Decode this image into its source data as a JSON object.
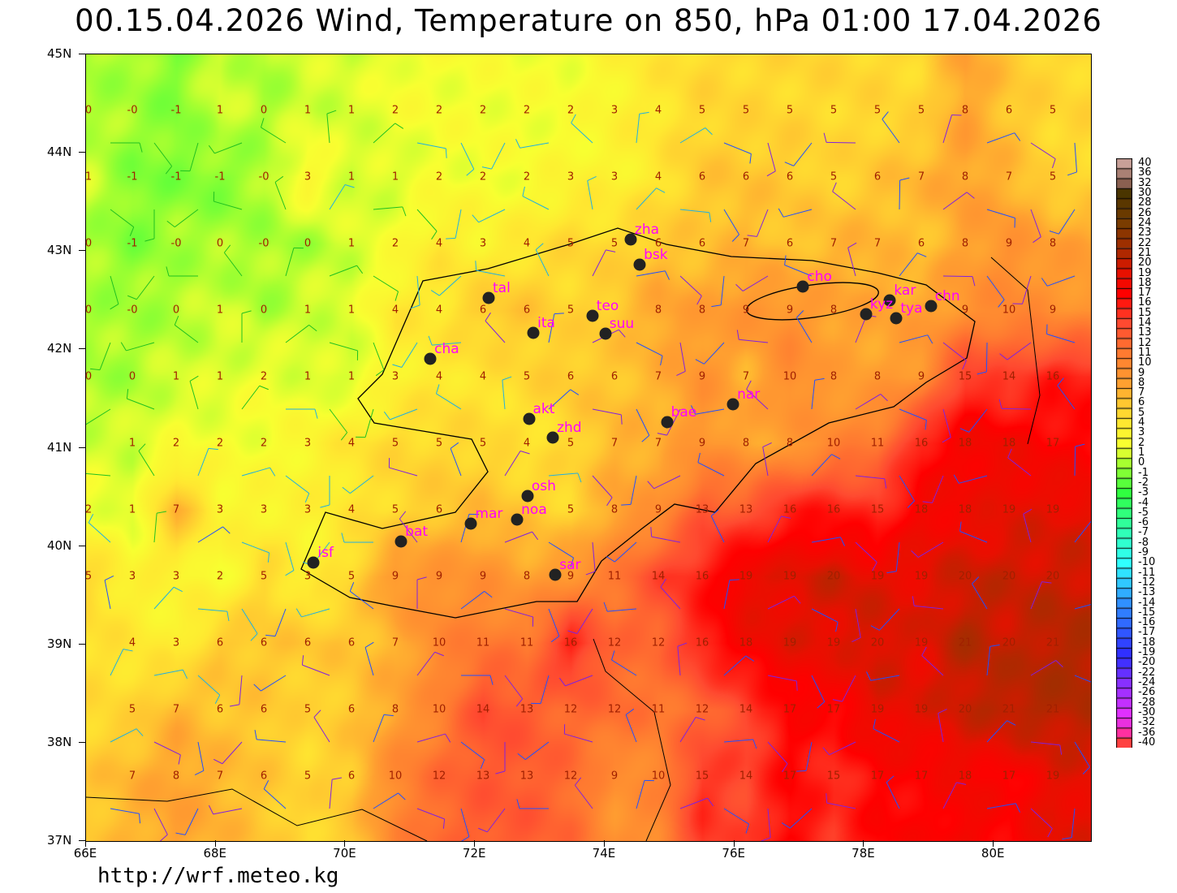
{
  "title": "00.15.04.2026 Wind, Temperature on 850, hPa 01:00 17.04.2026",
  "footer_url": "http://wrf.meteo.kg",
  "axes": {
    "lon_range": [
      66,
      81.5
    ],
    "lat_range": [
      37,
      45
    ],
    "x_ticks": [
      "66E",
      "68E",
      "70E",
      "72E",
      "74E",
      "76E",
      "78E",
      "80E"
    ],
    "y_ticks": [
      "37N",
      "38N",
      "39N",
      "40N",
      "41N",
      "42N",
      "43N",
      "44N",
      "45N"
    ]
  },
  "stations": [
    {
      "code": "zha",
      "lon": 74.4,
      "lat": 43.12
    },
    {
      "code": "bsk",
      "lon": 74.54,
      "lat": 42.86
    },
    {
      "code": "tal",
      "lon": 72.21,
      "lat": 42.52
    },
    {
      "code": "teo",
      "lon": 73.81,
      "lat": 42.34
    },
    {
      "code": "ita",
      "lon": 72.9,
      "lat": 42.17
    },
    {
      "code": "suu",
      "lon": 74.01,
      "lat": 42.16
    },
    {
      "code": "cha",
      "lon": 71.31,
      "lat": 41.9
    },
    {
      "code": "cho",
      "lon": 77.06,
      "lat": 42.64
    },
    {
      "code": "kar",
      "lon": 78.4,
      "lat": 42.5
    },
    {
      "code": "kyz",
      "lon": 78.03,
      "lat": 42.36
    },
    {
      "code": "tya",
      "lon": 78.5,
      "lat": 42.32
    },
    {
      "code": "chn",
      "lon": 79.03,
      "lat": 42.44
    },
    {
      "code": "nar",
      "lon": 75.98,
      "lat": 41.44
    },
    {
      "code": "bae",
      "lon": 74.96,
      "lat": 41.26
    },
    {
      "code": "akt",
      "lon": 72.83,
      "lat": 41.29
    },
    {
      "code": "zhd",
      "lon": 73.2,
      "lat": 41.1
    },
    {
      "code": "osh",
      "lon": 72.81,
      "lat": 40.51
    },
    {
      "code": "noa",
      "lon": 72.65,
      "lat": 40.27
    },
    {
      "code": "mar",
      "lon": 71.94,
      "lat": 40.23
    },
    {
      "code": "bat",
      "lon": 70.86,
      "lat": 40.05
    },
    {
      "code": "isf",
      "lon": 69.51,
      "lat": 39.83
    },
    {
      "code": "sar",
      "lon": 73.24,
      "lat": 39.71
    }
  ],
  "temperature_grid": [
    [
      "0",
      "-0",
      "-1",
      "1",
      "0",
      "1",
      "1",
      "2",
      "2",
      "2",
      "2",
      "2",
      "3",
      "4",
      "5",
      "5",
      "5",
      "5",
      "5",
      "5",
      "8",
      "6",
      "5"
    ],
    [
      "1",
      "-1",
      "-1",
      "-1",
      "-0",
      "3",
      "1",
      "1",
      "2",
      "2",
      "2",
      "3",
      "3",
      "4",
      "6",
      "6",
      "6",
      "5",
      "6",
      "7",
      "8",
      "7",
      "5"
    ],
    [
      "0",
      "-1",
      "-0",
      "0",
      "-0",
      "0",
      "1",
      "2",
      "4",
      "3",
      "4",
      "5",
      "5",
      "6",
      "6",
      "7",
      "6",
      "7",
      "7",
      "6",
      "8",
      "9",
      "8"
    ],
    [
      "0",
      "-0",
      "0",
      "1",
      "0",
      "1",
      "1",
      "4",
      "4",
      "6",
      "6",
      "5",
      "",
      "8",
      "8",
      "9",
      "9",
      "8",
      "",
      "",
      "9",
      "10",
      "9"
    ],
    [
      "0",
      "0",
      "1",
      "1",
      "2",
      "1",
      "1",
      "3",
      "4",
      "4",
      "5",
      "6",
      "6",
      "7",
      "9",
      "7",
      "10",
      "8",
      "8",
      "9",
      "15",
      "14",
      "16"
    ],
    [
      "",
      "1",
      "2",
      "2",
      "2",
      "3",
      "4",
      "5",
      "5",
      "5",
      "4",
      "5",
      "7",
      "7",
      "9",
      "8",
      "8",
      "10",
      "11",
      "16",
      "18",
      "18",
      "17"
    ],
    [
      "2",
      "1",
      "7",
      "3",
      "3",
      "3",
      "4",
      "5",
      "6",
      "",
      "",
      "5",
      "8",
      "9",
      "13",
      "13",
      "16",
      "16",
      "15",
      "18",
      "18",
      "19",
      "19"
    ],
    [
      "5",
      "3",
      "3",
      "2",
      "5",
      "3",
      "5",
      "9",
      "9",
      "9",
      "8",
      "9",
      "11",
      "14",
      "16",
      "19",
      "19",
      "20",
      "19",
      "19",
      "20",
      "20",
      "20"
    ],
    [
      "",
      "4",
      "3",
      "6",
      "6",
      "6",
      "6",
      "7",
      "10",
      "11",
      "11",
      "16",
      "12",
      "12",
      "16",
      "18",
      "19",
      "19",
      "20",
      "19",
      "21",
      "20",
      "21"
    ],
    [
      "",
      "5",
      "7",
      "6",
      "6",
      "5",
      "6",
      "8",
      "10",
      "14",
      "13",
      "12",
      "12",
      "11",
      "12",
      "14",
      "17",
      "17",
      "19",
      "19",
      "20",
      "21",
      "21"
    ],
    [
      "",
      "7",
      "8",
      "7",
      "6",
      "5",
      "6",
      "10",
      "12",
      "13",
      "13",
      "12",
      "9",
      "10",
      "15",
      "14",
      "17",
      "15",
      "17",
      "17",
      "18",
      "17",
      "19"
    ]
  ],
  "colorbar": {
    "labels": [
      "40",
      "36",
      "32",
      "30",
      "28",
      "26",
      "24",
      "23",
      "22",
      "21",
      "20",
      "19",
      "18",
      "17",
      "16",
      "15",
      "14",
      "13",
      "12",
      "11",
      "10",
      "9",
      "8",
      "7",
      "6",
      "5",
      "4",
      "3",
      "2",
      "1",
      "0",
      "-1",
      "-2",
      "-3",
      "-4",
      "-5",
      "-6",
      "-7",
      "-8",
      "-9",
      "-10",
      "-11",
      "-12",
      "-13",
      "-14",
      "-15",
      "-16",
      "-17",
      "-18",
      "-19",
      "-20",
      "-22",
      "-24",
      "-26",
      "-28",
      "-30",
      "-32",
      "-36",
      "-40"
    ],
    "color_stops": [
      {
        "t": 40,
        "c": "#c8a098"
      },
      {
        "t": 32,
        "c": "#8a6050"
      },
      {
        "t": 30,
        "c": "#4a3500"
      },
      {
        "t": 24,
        "c": "#7a3c00"
      },
      {
        "t": 21,
        "c": "#b02800"
      },
      {
        "t": 19,
        "c": "#e81000"
      },
      {
        "t": 17,
        "c": "#ff0000"
      },
      {
        "t": 14,
        "c": "#ff4a30"
      },
      {
        "t": 11,
        "c": "#ff7a30"
      },
      {
        "t": 8,
        "c": "#ffa030"
      },
      {
        "t": 6,
        "c": "#ffc830"
      },
      {
        "t": 4,
        "c": "#ffe830"
      },
      {
        "t": 2,
        "c": "#f8ff30"
      },
      {
        "t": 1,
        "c": "#d8ff30"
      },
      {
        "t": 0,
        "c": "#a8ff30"
      },
      {
        "t": -3,
        "c": "#30ff40"
      },
      {
        "t": -7,
        "c": "#30ffb8"
      },
      {
        "t": -10,
        "c": "#30ffff"
      },
      {
        "t": -14,
        "c": "#3090ff"
      },
      {
        "t": -19,
        "c": "#3030ff"
      },
      {
        "t": -24,
        "c": "#8830ff"
      },
      {
        "t": -30,
        "c": "#e030ff"
      },
      {
        "t": -36,
        "c": "#ff30a0"
      },
      {
        "t": -40,
        "c": "#ff4040"
      }
    ]
  },
  "colors": {
    "station_label": "#ff00ff",
    "station_dot": "#222222",
    "temp_label": "#a02000",
    "border": "#000000"
  }
}
